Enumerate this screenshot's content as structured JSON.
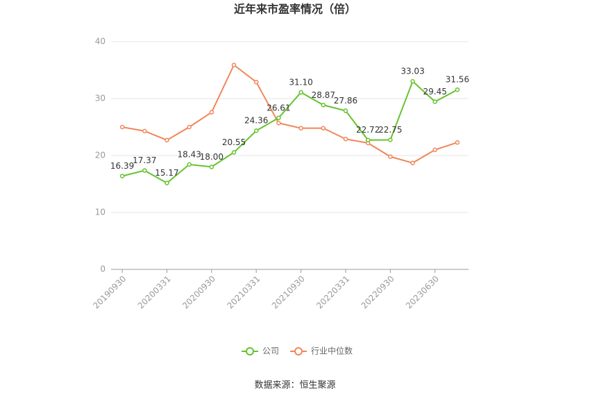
{
  "chart_data": {
    "type": "line",
    "title": "近年来市盈率情况（倍）",
    "categories": [
      "20190930",
      null,
      "20200331",
      null,
      "20200930",
      null,
      "20210331",
      null,
      "20210930",
      null,
      "20220331",
      null,
      "20220930",
      null,
      "20230630",
      null
    ],
    "series": [
      {
        "name": "公司",
        "color": "#66c22e",
        "values": [
          16.39,
          17.37,
          15.17,
          18.43,
          18.0,
          20.55,
          24.36,
          26.61,
          31.1,
          28.87,
          27.86,
          22.72,
          22.75,
          33.03,
          29.45,
          31.56
        ],
        "value_labels": [
          "16.39",
          "17.37",
          "15.17",
          "18.43",
          "18.00",
          "20.55",
          "24.36",
          "26.61",
          "31.10",
          "28.87",
          "27.86",
          "22.72",
          "22.75",
          "33.03",
          "29.45",
          "31.56"
        ]
      },
      {
        "name": "行业中位数",
        "color": "#f0875a",
        "values": [
          25.0,
          24.3,
          22.7,
          25.0,
          27.6,
          35.9,
          32.9,
          25.7,
          24.8,
          24.8,
          22.9,
          22.2,
          19.8,
          18.7,
          21.0,
          22.3
        ]
      }
    ],
    "ylim": [
      0,
      40
    ],
    "yticks": [
      0,
      10,
      20,
      30,
      40
    ],
    "grid": true,
    "source": "数据来源：恒生聚源"
  }
}
